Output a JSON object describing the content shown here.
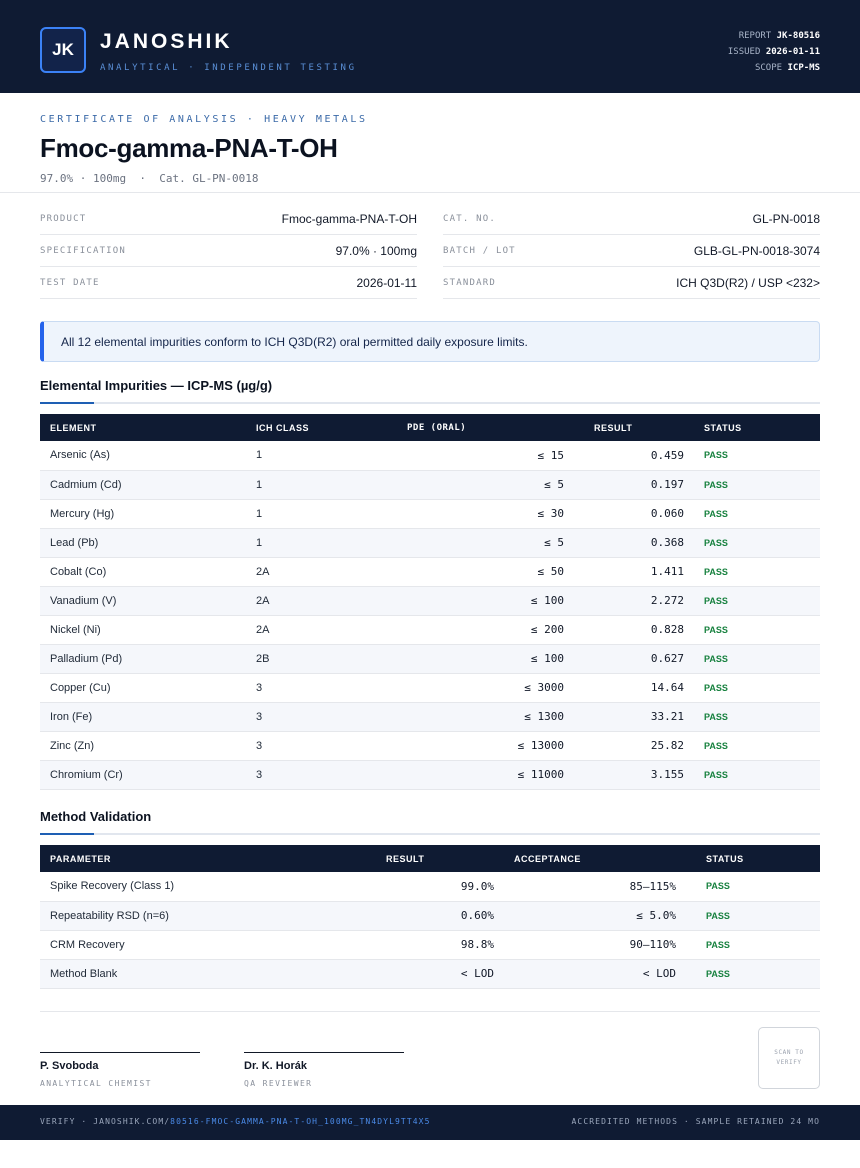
{
  "header": {
    "logo": "JK",
    "brand": "JANOSHIK",
    "tagline": "ANALYTICAL · INDEPENDENT TESTING",
    "report_label": "REPORT",
    "report_value": "JK-80516",
    "issued_label": "ISSUED",
    "issued_value": "2026-01-11",
    "scope_label": "SCOPE",
    "scope_value": "ICP-MS"
  },
  "title_block": {
    "eyebrow": "CERTIFICATE OF ANALYSIS · HEAVY METALS",
    "title": "Fmoc-gamma-PNA-T-OH",
    "subtitle": "97.0% · 100mg  ·  Cat. GL-PN-0018"
  },
  "info": {
    "product_label": "PRODUCT",
    "product_value": "Fmoc-gamma-PNA-T-OH",
    "spec_label": "SPECIFICATION",
    "spec_value": "97.0% · 100mg",
    "date_label": "TEST DATE",
    "date_value": "2026-01-11",
    "cat_label": "CAT. NO.",
    "cat_value": "GL-PN-0018",
    "batch_label": "BATCH / LOT",
    "batch_value": "GLB-GL-PN-0018-3074",
    "standard_label": "STANDARD",
    "standard_value": "ICH Q3D(R2) / USP <232>"
  },
  "notice": "All 12 elemental impurities conform to ICH Q3D(R2) oral permitted daily exposure limits.",
  "impurities": {
    "heading": "Elemental Impurities — ICP-MS (µg/g)",
    "columns": [
      "ELEMENT",
      "ICH CLASS",
      "PDE (ORAL)",
      "RESULT",
      "STATUS"
    ],
    "rows": [
      {
        "element": "Arsenic (As)",
        "cls": "1",
        "pde": "≤ 15",
        "result": "0.459",
        "status": "PASS"
      },
      {
        "element": "Cadmium (Cd)",
        "cls": "1",
        "pde": "≤ 5",
        "result": "0.197",
        "status": "PASS"
      },
      {
        "element": "Mercury (Hg)",
        "cls": "1",
        "pde": "≤ 30",
        "result": "0.060",
        "status": "PASS"
      },
      {
        "element": "Lead (Pb)",
        "cls": "1",
        "pde": "≤ 5",
        "result": "0.368",
        "status": "PASS"
      },
      {
        "element": "Cobalt (Co)",
        "cls": "2A",
        "pde": "≤ 50",
        "result": "1.411",
        "status": "PASS"
      },
      {
        "element": "Vanadium (V)",
        "cls": "2A",
        "pde": "≤ 100",
        "result": "2.272",
        "status": "PASS"
      },
      {
        "element": "Nickel (Ni)",
        "cls": "2A",
        "pde": "≤ 200",
        "result": "0.828",
        "status": "PASS"
      },
      {
        "element": "Palladium (Pd)",
        "cls": "2B",
        "pde": "≤ 100",
        "result": "0.627",
        "status": "PASS"
      },
      {
        "element": "Copper (Cu)",
        "cls": "3",
        "pde": "≤ 3000",
        "result": "14.64",
        "status": "PASS"
      },
      {
        "element": "Iron (Fe)",
        "cls": "3",
        "pde": "≤ 1300",
        "result": "33.21",
        "status": "PASS"
      },
      {
        "element": "Zinc (Zn)",
        "cls": "3",
        "pde": "≤ 13000",
        "result": "25.82",
        "status": "PASS"
      },
      {
        "element": "Chromium (Cr)",
        "cls": "3",
        "pde": "≤ 11000",
        "result": "3.155",
        "status": "PASS"
      }
    ]
  },
  "validation": {
    "heading": "Method Validation",
    "columns": [
      "PARAMETER",
      "RESULT",
      "ACCEPTANCE",
      "STATUS"
    ],
    "rows": [
      {
        "parameter": "Spike Recovery (Class 1)",
        "result": "99.0%",
        "acceptance": "85–115%",
        "status": "PASS"
      },
      {
        "parameter": "Repeatability RSD (n=6)",
        "result": "0.60%",
        "acceptance": "≤ 5.0%",
        "status": "PASS"
      },
      {
        "parameter": "CRM Recovery",
        "result": "98.8%",
        "acceptance": "90–110%",
        "status": "PASS"
      },
      {
        "parameter": "Method Blank",
        "result": "< LOD",
        "acceptance": "< LOD",
        "status": "PASS"
      }
    ]
  },
  "signatures": {
    "sig1_name": "P. Svoboda",
    "sig1_role": "ANALYTICAL CHEMIST",
    "sig2_name": "Dr. K. Horák",
    "sig2_role": "QA REVIEWER",
    "qr_text": "SCAN TO VERIFY"
  },
  "footer": {
    "verify_prefix": "VERIFY · JANOSHIK.COM/",
    "verify_path": "80516-FMOC-GAMMA-PNA-T-OH_100MG_TN4DYL9TT4X5",
    "right": "ACCREDITED METHODS · SAMPLE RETAINED 24 MO"
  },
  "colors": {
    "navy": "#0f1b33",
    "accent": "#2563eb",
    "pass": "#15803d"
  }
}
